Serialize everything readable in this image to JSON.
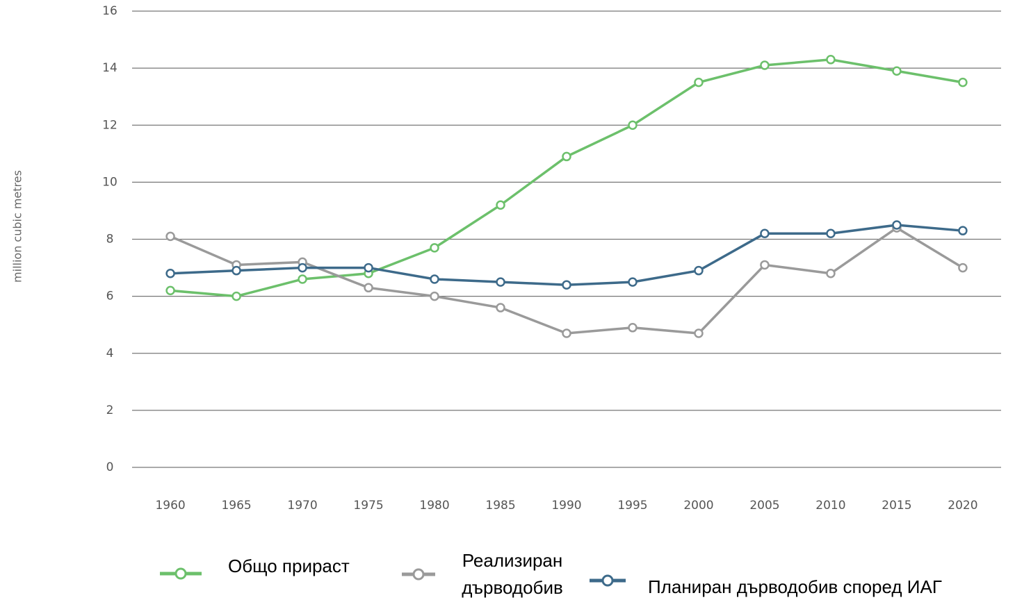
{
  "chart_data": {
    "type": "line",
    "y_label": "million cubic metres",
    "x": [
      1960,
      1965,
      1970,
      1975,
      1980,
      1985,
      1990,
      1995,
      2000,
      2005,
      2010,
      2015,
      2020
    ],
    "xlim": [
      1957.1,
      2022.9
    ],
    "xticks": [
      1960,
      1965,
      1970,
      1975,
      1980,
      1985,
      1990,
      1995,
      2000,
      2005,
      2010,
      2015,
      2020
    ],
    "ylim": [
      0,
      16
    ],
    "yticks": [
      0,
      2,
      4,
      6,
      8,
      10,
      12,
      14,
      16
    ],
    "grid": true,
    "legend": "bottom",
    "series": [
      {
        "name": "Общо прираст",
        "color": "#6cc06b",
        "values": [
          6.2,
          6.0,
          6.6,
          6.8,
          7.7,
          9.2,
          10.9,
          12.0,
          13.5,
          14.1,
          14.3,
          13.9,
          13.5
        ]
      },
      {
        "name": "Реализиран дърводобив",
        "color": "#9a9a9a",
        "values": [
          8.1,
          7.1,
          7.2,
          6.3,
          6.0,
          5.6,
          4.7,
          4.9,
          4.7,
          7.1,
          6.8,
          8.4,
          7.0
        ]
      },
      {
        "name": "Планиран дърводобив според ИАГ",
        "color": "#3d6a8a",
        "values": [
          6.8,
          6.9,
          7.0,
          7.0,
          6.6,
          6.5,
          6.4,
          6.5,
          6.9,
          8.2,
          8.2,
          8.5,
          8.3
        ]
      }
    ]
  }
}
